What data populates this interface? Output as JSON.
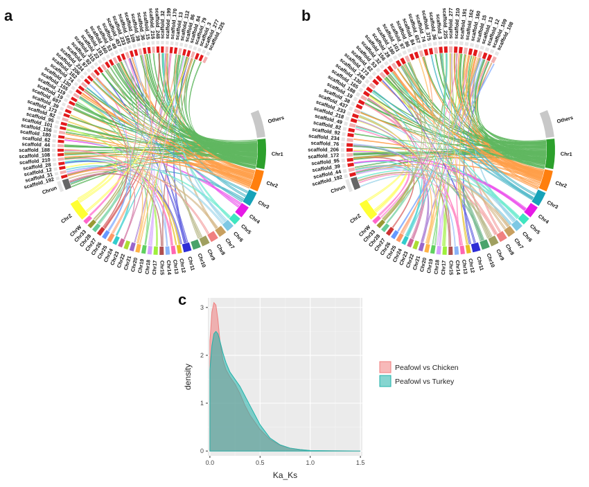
{
  "panels": {
    "a": "a",
    "b": "b",
    "c": "c"
  },
  "circos": [
    {
      "id": "a",
      "labels_right": [
        "Others",
        "Chr1",
        "Chr2",
        "Chr3",
        "Chr4",
        "Chr5",
        "Chr6",
        "Chr7",
        "Chr8",
        "Chr9",
        "Chr10",
        "Chr11",
        "Chr12",
        "Chr13",
        "Chr14",
        "Chr15",
        "Chr17",
        "Chr18",
        "Chr19",
        "Chr20",
        "Chr21",
        "Chr22",
        "Chr23",
        "Chr24",
        "Chr25",
        "Chr26",
        "Chr27",
        "Chr28",
        "Chr33",
        "ChrW",
        "ChrZ"
      ],
      "labels_left": [
        "Chrun",
        "scaffold_192",
        "scaffold_31",
        "scaffold_12",
        "scaffold_28",
        "scaffold_210",
        "scaffold_108",
        "scaffold_188",
        "scaffold_44",
        "scaffold_62",
        "scaffold_180",
        "scaffold_156",
        "scaffold_101",
        "scaffold_95",
        "scaffold_82",
        "scaffold_173",
        "scaffold_39",
        "scaffold_697",
        "scaffold_19",
        "scaffold_119",
        "scaffold_155",
        "scaffold_130",
        "scaffold_74",
        "scaffold_162",
        "scaffold_206",
        "scaffold_234",
        "scaffold_97",
        "scaffold_92",
        "scaffold_315",
        "scaffold_22",
        "scaffold_191",
        "scaffold_160",
        "scaffold_53",
        "scaffold_49",
        "scaffold_457",
        "scaffold_233",
        "scaffold_185",
        "scaffold_109",
        "scaffold_38",
        "scaffold_36",
        "scaffold_15",
        "scaffold_216",
        "scaffold_248",
        "scaffold_32",
        "scaffold_199",
        "scaffold_170",
        "scaffold_13",
        "scaffold_112",
        "scaffold_86",
        "scaffold_84",
        "scaffold_79",
        "scaffold_3",
        "scaffold_277",
        "scaffold_225"
      ]
    },
    {
      "id": "b",
      "labels_right": [
        "Others",
        "Chr1",
        "Chr2",
        "Chr3",
        "Chr4",
        "Chr5",
        "Chr6",
        "Chr7",
        "Chr8",
        "Chr9",
        "Chr10",
        "Chr11",
        "Chr12",
        "Chr13",
        "Chr14",
        "Chr15",
        "Chr17",
        "Chr18",
        "Chr19",
        "Chr20",
        "Chr21",
        "Chr22",
        "Chr23",
        "Chr24",
        "Chr25",
        "Chr26",
        "Chr27",
        "Chr28",
        "Chr33",
        "ChrW",
        "ChrZ"
      ],
      "labels_left": [
        "Chrun",
        "scaffold_192",
        "scaffold_44",
        "scaffold_39",
        "scaffold_95",
        "scaffold_172",
        "scaffold_206",
        "scaffold_76",
        "scaffold_234",
        "scaffold_92",
        "scaffold_82",
        "scaffold_49",
        "scaffold_218",
        "scaffold_233",
        "scaffold_437",
        "scaffold_38",
        "scaffold_19",
        "scaffold_188",
        "scaffold_165",
        "scaffold_130",
        "scaffold_248",
        "scaffold_173",
        "scaffold_62",
        "scaffold_53",
        "scaffold_32",
        "scaffold_156",
        "scaffold_28",
        "scaffold_180",
        "scaffold_101",
        "scaffold_97",
        "scaffold_86",
        "scaffold_84",
        "scaffold_657",
        "scaffold_74",
        "scaffold_375",
        "scaffold_36",
        "scaffold_3",
        "scaffold_225",
        "scaffold_277",
        "scaffold_210",
        "scaffold_191",
        "scaffold_162",
        "scaffold_160",
        "scaffold_15",
        "scaffold_13",
        "scaffold_12",
        "scaffold_109",
        "scaffold_108"
      ]
    }
  ],
  "density_plot": {
    "xlabel": "Ka_Ks",
    "ylabel": "density",
    "x_ticks": [
      "0.0",
      "0.5",
      "1.0",
      "1.5"
    ],
    "y_ticks": [
      "0",
      "1",
      "2",
      "3"
    ],
    "legend": [
      "Peafowl  vs Chicken",
      "Peafowl  vs Turkey"
    ]
  },
  "chart_data": {
    "type": "area",
    "xlabel": "Ka_Ks",
    "ylabel": "density",
    "xlim": [
      -0.02,
      1.52
    ],
    "ylim": [
      -0.1,
      3.2
    ],
    "x_ticks": [
      0,
      0.5,
      1.0,
      1.5
    ],
    "y_ticks": [
      0,
      1,
      2,
      3
    ],
    "grid": true,
    "legend_position": "right",
    "series": [
      {
        "name": "Peafowl  vs Chicken",
        "color": "#f08080",
        "x": [
          0,
          0.02,
          0.04,
          0.06,
          0.08,
          0.1,
          0.13,
          0.16,
          0.2,
          0.25,
          0.3,
          0.35,
          0.4,
          0.45,
          0.5,
          0.6,
          0.7,
          0.8,
          0.9,
          1.0,
          1.2,
          1.5
        ],
        "y": [
          2.3,
          2.9,
          3.1,
          3.05,
          2.75,
          2.3,
          1.9,
          1.7,
          1.55,
          1.4,
          1.2,
          0.95,
          0.75,
          0.6,
          0.45,
          0.24,
          0.12,
          0.06,
          0.03,
          0.01,
          0.005,
          0.0
        ]
      },
      {
        "name": "Peafowl  vs Turkey",
        "color": "#20b2aa",
        "x": [
          0,
          0.02,
          0.04,
          0.06,
          0.08,
          0.1,
          0.13,
          0.16,
          0.2,
          0.25,
          0.3,
          0.35,
          0.4,
          0.45,
          0.5,
          0.6,
          0.7,
          0.8,
          0.9,
          1.0,
          1.2,
          1.5
        ],
        "y": [
          1.7,
          2.2,
          2.45,
          2.5,
          2.45,
          2.3,
          2.05,
          1.85,
          1.65,
          1.5,
          1.35,
          1.15,
          0.95,
          0.75,
          0.55,
          0.27,
          0.13,
          0.06,
          0.03,
          0.01,
          0.005,
          0.0
        ]
      }
    ]
  }
}
